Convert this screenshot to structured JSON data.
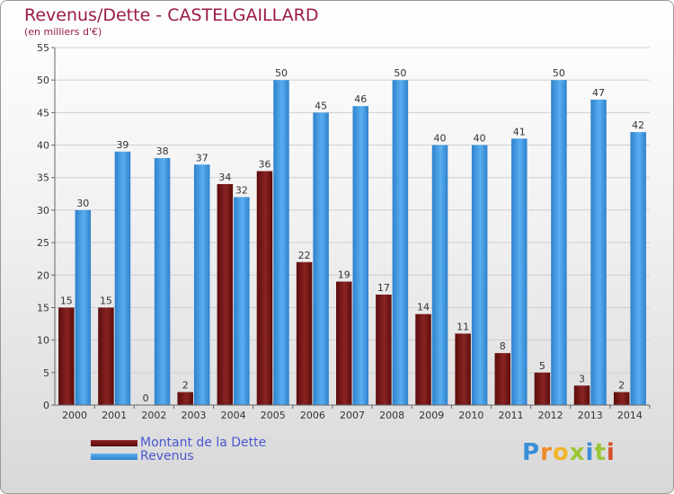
{
  "header": {
    "title": "Revenus/Dette - CASTELGAILLARD",
    "subtitle": "(en milliers d'€)"
  },
  "legend": {
    "debt_label": "Montant de la Dette",
    "revenue_label": "Revenus"
  },
  "logo": {
    "letters": [
      "P",
      "r",
      "o",
      "x",
      "i",
      "t",
      "i"
    ],
    "colors": [
      "#3a8fd8",
      "#f08a2a",
      "#f0b62a",
      "#9bc63a",
      "#3a8fd8",
      "#9bc63a",
      "#d6502a"
    ]
  },
  "colors": {
    "debt": "#7a1a1a",
    "revenue": "#3d95dd"
  },
  "chart_data": {
    "type": "bar",
    "categories": [
      "2000",
      "2001",
      "2002",
      "2003",
      "2004",
      "2005",
      "2006",
      "2007",
      "2008",
      "2009",
      "2010",
      "2011",
      "2012",
      "2013",
      "2014"
    ],
    "series": [
      {
        "name": "Montant de la Dette",
        "values": [
          15,
          15,
          0,
          2,
          34,
          36,
          22,
          19,
          17,
          14,
          11,
          8,
          5,
          3,
          2
        ]
      },
      {
        "name": "Revenus",
        "values": [
          30,
          39,
          38,
          37,
          32,
          50,
          45,
          46,
          50,
          40,
          40,
          41,
          50,
          47,
          42
        ]
      }
    ],
    "ylim": [
      0,
      55
    ],
    "yticks": [
      0,
      5,
      10,
      15,
      20,
      25,
      30,
      35,
      40,
      45,
      50,
      55
    ],
    "grid": true,
    "legend_position": "bottom-left"
  }
}
